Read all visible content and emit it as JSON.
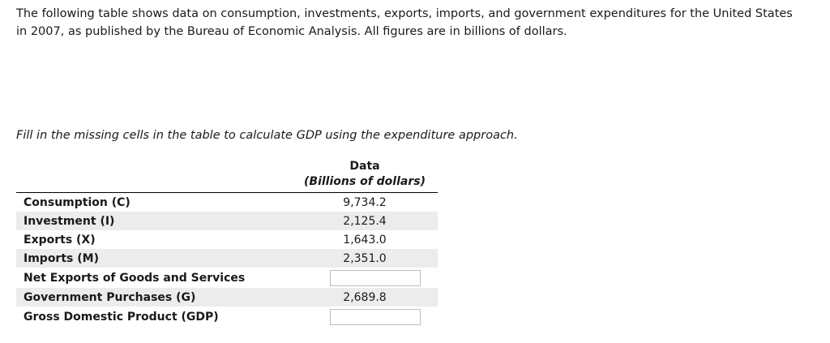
{
  "intro_text": "The following table shows data on consumption, investments, exports, imports, and government expenditures for the United States in 2007, as published by the Bureau of Economic Analysis. All figures are in billions of dollars.",
  "instruction_text": "Fill in the missing cells in the table to calculate GDP using the expenditure approach.",
  "table": {
    "column_header": "Data",
    "column_units": "(Billions of dollars)",
    "rows": [
      {
        "label": "Consumption (C)",
        "value": "9,734.2"
      },
      {
        "label": "Investment (I)",
        "value": "2,125.4"
      },
      {
        "label": "Exports (X)",
        "value": "1,643.0"
      },
      {
        "label": "Imports (M)",
        "value": "2,351.0"
      },
      {
        "label": "Net Exports of Goods and Services",
        "value": ""
      },
      {
        "label": "Government Purchases (G)",
        "value": "2,689.8"
      },
      {
        "label": "Gross Domestic Product (GDP)",
        "value": ""
      }
    ]
  }
}
